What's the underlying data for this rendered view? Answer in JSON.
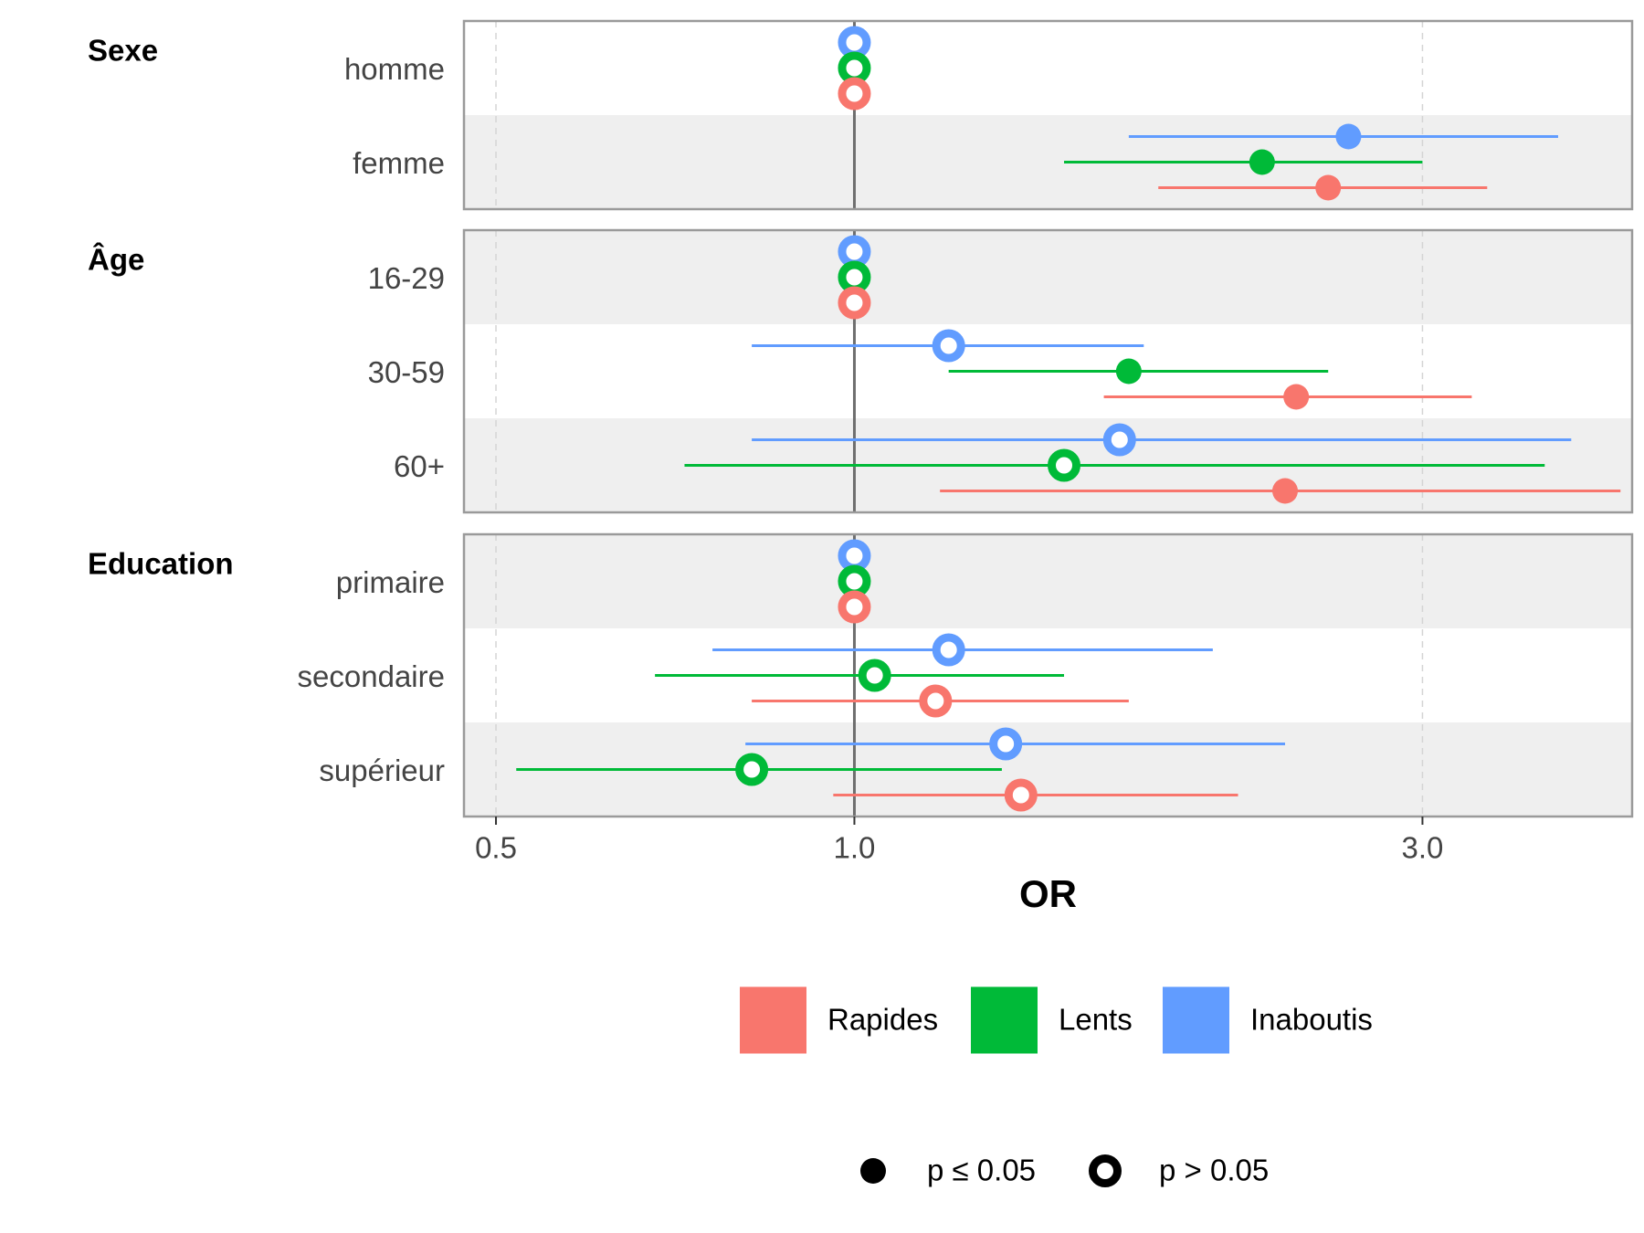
{
  "chart_data": {
    "type": "forest",
    "xlabel": "OR",
    "x_scale": "log",
    "xlim": [
      0.47,
      4.5
    ],
    "x_ticks": [
      {
        "value": 0.5,
        "label": "0.5"
      },
      {
        "value": 1.0,
        "label": "1.0"
      },
      {
        "value": 3.0,
        "label": "3.0"
      }
    ],
    "reference_line": 1.0,
    "colors": {
      "Rapides": "#F8766D",
      "Lents": "#00BA38",
      "Inaboutis": "#619CFF"
    },
    "legend": {
      "series": [
        {
          "key": "Rapides",
          "label": "Rapides"
        },
        {
          "key": "Lents",
          "label": "Lents"
        },
        {
          "key": "Inaboutis",
          "label": "Inaboutis"
        }
      ],
      "significance": [
        {
          "key": "sig",
          "label": "p ≤ 0.05"
        },
        {
          "key": "ns",
          "label": "p > 0.05"
        }
      ]
    },
    "groups": [
      {
        "name": "Sexe",
        "rows": [
          {
            "label": "homme",
            "estimates": [
              {
                "series": "Inaboutis",
                "or": 1.0,
                "sig": false
              },
              {
                "series": "Lents",
                "or": 1.0,
                "sig": false
              },
              {
                "series": "Rapides",
                "or": 1.0,
                "sig": false
              }
            ]
          },
          {
            "label": "femme",
            "estimates": [
              {
                "series": "Inaboutis",
                "or": 2.6,
                "lo": 1.7,
                "hi": 3.9,
                "sig": true
              },
              {
                "series": "Lents",
                "or": 2.2,
                "lo": 1.5,
                "hi": 3.0,
                "sig": true
              },
              {
                "series": "Rapides",
                "or": 2.5,
                "lo": 1.8,
                "hi": 3.4,
                "sig": true
              }
            ]
          }
        ]
      },
      {
        "name": "Âge",
        "rows": [
          {
            "label": "16-29",
            "estimates": [
              {
                "series": "Inaboutis",
                "or": 1.0,
                "sig": false
              },
              {
                "series": "Lents",
                "or": 1.0,
                "sig": false
              },
              {
                "series": "Rapides",
                "or": 1.0,
                "sig": false
              }
            ]
          },
          {
            "label": "30-59",
            "estimates": [
              {
                "series": "Inaboutis",
                "or": 1.2,
                "lo": 0.82,
                "hi": 1.75,
                "sig": false
              },
              {
                "series": "Lents",
                "or": 1.7,
                "lo": 1.2,
                "hi": 2.5,
                "sig": true
              },
              {
                "series": "Rapides",
                "or": 2.35,
                "lo": 1.62,
                "hi": 3.3,
                "sig": true
              }
            ]
          },
          {
            "label": "60+",
            "estimates": [
              {
                "series": "Inaboutis",
                "or": 1.67,
                "lo": 0.82,
                "hi": 4.0,
                "sig": false
              },
              {
                "series": "Lents",
                "or": 1.5,
                "lo": 0.72,
                "hi": 3.8,
                "sig": false
              },
              {
                "series": "Rapides",
                "or": 2.3,
                "lo": 1.18,
                "hi": 4.4,
                "sig": true
              }
            ]
          }
        ]
      },
      {
        "name": "Education",
        "rows": [
          {
            "label": "primaire",
            "estimates": [
              {
                "series": "Inaboutis",
                "or": 1.0,
                "sig": false
              },
              {
                "series": "Lents",
                "or": 1.0,
                "sig": false
              },
              {
                "series": "Rapides",
                "or": 1.0,
                "sig": false
              }
            ]
          },
          {
            "label": "secondaire",
            "estimates": [
              {
                "series": "Inaboutis",
                "or": 1.2,
                "lo": 0.76,
                "hi": 2.0,
                "sig": false
              },
              {
                "series": "Lents",
                "or": 1.04,
                "lo": 0.68,
                "hi": 1.5,
                "sig": false
              },
              {
                "series": "Rapides",
                "or": 1.17,
                "lo": 0.82,
                "hi": 1.7,
                "sig": false
              }
            ]
          },
          {
            "label": "supérieur",
            "estimates": [
              {
                "series": "Inaboutis",
                "or": 1.34,
                "lo": 0.81,
                "hi": 2.3,
                "sig": false
              },
              {
                "series": "Lents",
                "or": 0.82,
                "lo": 0.52,
                "hi": 1.33,
                "sig": false
              },
              {
                "series": "Rapides",
                "or": 1.38,
                "lo": 0.96,
                "hi": 2.1,
                "sig": false
              }
            ]
          }
        ]
      }
    ]
  }
}
